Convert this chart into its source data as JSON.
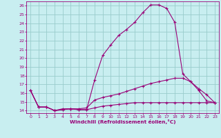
{
  "title": "",
  "xlabel": "Windchill (Refroidissement éolien,°C)",
  "bg_color": "#c8eef0",
  "line_color": "#990077",
  "grid_color": "#99cccc",
  "spine_color": "#884488",
  "xlim": [
    -0.5,
    23.5
  ],
  "ylim": [
    13.7,
    26.5
  ],
  "xticks": [
    0,
    1,
    2,
    3,
    4,
    5,
    6,
    7,
    8,
    9,
    10,
    11,
    12,
    13,
    14,
    15,
    16,
    17,
    18,
    19,
    20,
    21,
    22,
    23
  ],
  "yticks": [
    14,
    15,
    16,
    17,
    18,
    19,
    20,
    21,
    22,
    23,
    24,
    25,
    26
  ],
  "lines": [
    {
      "x": [
        0,
        1,
        2,
        3,
        4,
        5,
        6,
        7,
        8,
        9,
        10,
        11,
        12,
        13,
        14,
        15,
        16,
        17,
        18,
        19,
        20,
        21,
        22,
        23
      ],
      "y": [
        16.3,
        14.4,
        14.4,
        14.0,
        14.1,
        14.2,
        14.1,
        14.1,
        17.5,
        20.3,
        21.5,
        22.6,
        23.3,
        24.1,
        25.2,
        26.1,
        26.1,
        25.7,
        24.1,
        18.2,
        17.3,
        16.3,
        15.1,
        14.9
      ]
    },
    {
      "x": [
        0,
        1,
        2,
        3,
        4,
        5,
        6,
        7,
        8,
        9,
        10,
        11,
        12,
        13,
        14,
        15,
        16,
        17,
        18,
        19,
        20,
        21,
        22,
        23
      ],
      "y": [
        16.3,
        14.4,
        14.4,
        14.0,
        14.2,
        14.2,
        14.2,
        14.3,
        15.2,
        15.5,
        15.7,
        15.9,
        16.2,
        16.5,
        16.8,
        17.1,
        17.3,
        17.5,
        17.7,
        17.7,
        17.3,
        16.5,
        15.8,
        14.9
      ]
    },
    {
      "x": [
        0,
        1,
        2,
        3,
        4,
        5,
        6,
        7,
        8,
        9,
        10,
        11,
        12,
        13,
        14,
        15,
        16,
        17,
        18,
        19,
        20,
        21,
        22,
        23
      ],
      "y": [
        16.3,
        14.4,
        14.4,
        14.0,
        14.1,
        14.2,
        14.1,
        14.1,
        14.3,
        14.5,
        14.6,
        14.7,
        14.8,
        14.9,
        14.9,
        14.9,
        14.9,
        14.9,
        14.9,
        14.9,
        14.9,
        14.9,
        14.9,
        14.9
      ]
    }
  ],
  "tick_fontsize": 4.5,
  "xlabel_fontsize": 5.2
}
